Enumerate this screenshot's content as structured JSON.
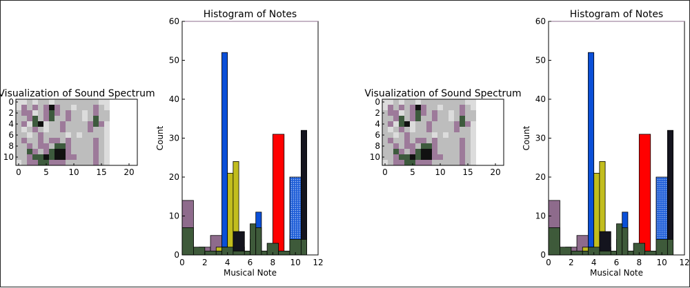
{
  "chart_data": [
    {
      "type": "heatmap",
      "title": "Visualization of Sound Spectrum",
      "xticks": [
        "0",
        "5",
        "10",
        "15",
        "20"
      ],
      "yticks": [
        "0",
        "2",
        "4",
        "6",
        "8",
        "10"
      ],
      "xlim": [
        -0.5,
        21.5
      ],
      "ylim": [
        11.5,
        -0.5
      ],
      "colors": {
        "white": "#ffffff",
        "light": "#dcdcdc",
        "grey": "#bdbdbd",
        "darkgrey": "#9a9a9a",
        "purple": "#9d7a9a",
        "lavender": "#b79ab4",
        "darkgreen": "#3d5a3d",
        "green": "#6c7f68",
        "black": "#111111"
      },
      "grid": [
        "LLGLGGLGGGGGGGGLLWWWWW",
        "LPGPGPKPGGLGGGPGLWWWWW",
        "GPPLGPDPGPGGLGPGGWWWWW",
        "GGPDGPDGGPGGLGDGGWWWWW",
        "GPLDKLGGPGGGGPDPLWWWWW",
        "GLGPGLGGPGGGGPGGLWWWWW",
        "GGLGPGGGGLGLGGGGLWWWWW",
        "GPGGPGPPGPGGGGPGLWWWWW",
        "GGPGPPGDDPGGGGPGLWWWWW",
        "GGDPGPDKKPGGGGPGLWWWWW",
        "GGPDDKDKKPPGGGPGLWWWWW",
        "LGPPDDPPPGGGGGPGLWWWWW"
      ]
    },
    {
      "type": "bar",
      "title": "Histogram of Notes",
      "xlabel": "Musical Note",
      "ylabel": "Count",
      "xlim": [
        0,
        12
      ],
      "ylim": [
        0,
        60
      ],
      "xticks": [
        0,
        2,
        4,
        6,
        8,
        10,
        12
      ],
      "yticks": [
        0,
        10,
        20,
        30,
        40,
        50,
        60
      ],
      "series": [
        {
          "name": "purple",
          "color": "#8e6b8c",
          "bins": [
            [
              0,
              1,
              14
            ],
            [
              1.5,
              2.5,
              2
            ],
            [
              2.5,
              3.5,
              5
            ],
            [
              3.5,
              4.5,
              1
            ],
            [
              6.0,
              7.0,
              4
            ],
            [
              7.0,
              8.0,
              1
            ],
            [
              9.5,
              10.5,
              5
            ]
          ]
        },
        {
          "name": "blue",
          "color": "#0a4fd8",
          "bins": [
            [
              3.5,
              4.0,
              52
            ],
            [
              4.5,
              5.5,
              2
            ],
            [
              6.5,
              7.0,
              11
            ],
            [
              8.5,
              9.0,
              1
            ],
            [
              10.5,
              11.0,
              8
            ]
          ]
        },
        {
          "name": "blue-hatch",
          "color": "#1f5ed8",
          "bins": [
            [
              9.5,
              10.5,
              20
            ]
          ]
        },
        {
          "name": "yellow",
          "color": "#c2bd1e",
          "bins": [
            [
              4.0,
              4.5,
              21
            ],
            [
              4.5,
              5.0,
              24
            ],
            [
              3.0,
              4.0,
              2
            ]
          ]
        },
        {
          "name": "black",
          "color": "#14141e",
          "bins": [
            [
              4.5,
              5.5,
              6
            ],
            [
              10.5,
              11.0,
              32
            ]
          ]
        },
        {
          "name": "red",
          "color": "#ff0000",
          "bins": [
            [
              8.0,
              9.0,
              31
            ]
          ]
        },
        {
          "name": "green",
          "color": "#3e5a3a",
          "bins": [
            [
              0,
              1,
              7
            ],
            [
              1,
              2,
              2
            ],
            [
              2,
              3,
              1
            ],
            [
              3,
              3.5,
              1
            ],
            [
              3.5,
              4.5,
              2
            ],
            [
              4.5,
              5.5,
              1
            ],
            [
              5.5,
              6.0,
              1
            ],
            [
              6.0,
              6.5,
              8
            ],
            [
              6.5,
              7.0,
              7
            ],
            [
              7.0,
              7.5,
              1
            ],
            [
              7.5,
              8.5,
              3
            ],
            [
              8.5,
              9.5,
              1
            ],
            [
              9.5,
              10.5,
              4
            ],
            [
              10.5,
              11.0,
              4
            ]
          ]
        }
      ]
    }
  ]
}
